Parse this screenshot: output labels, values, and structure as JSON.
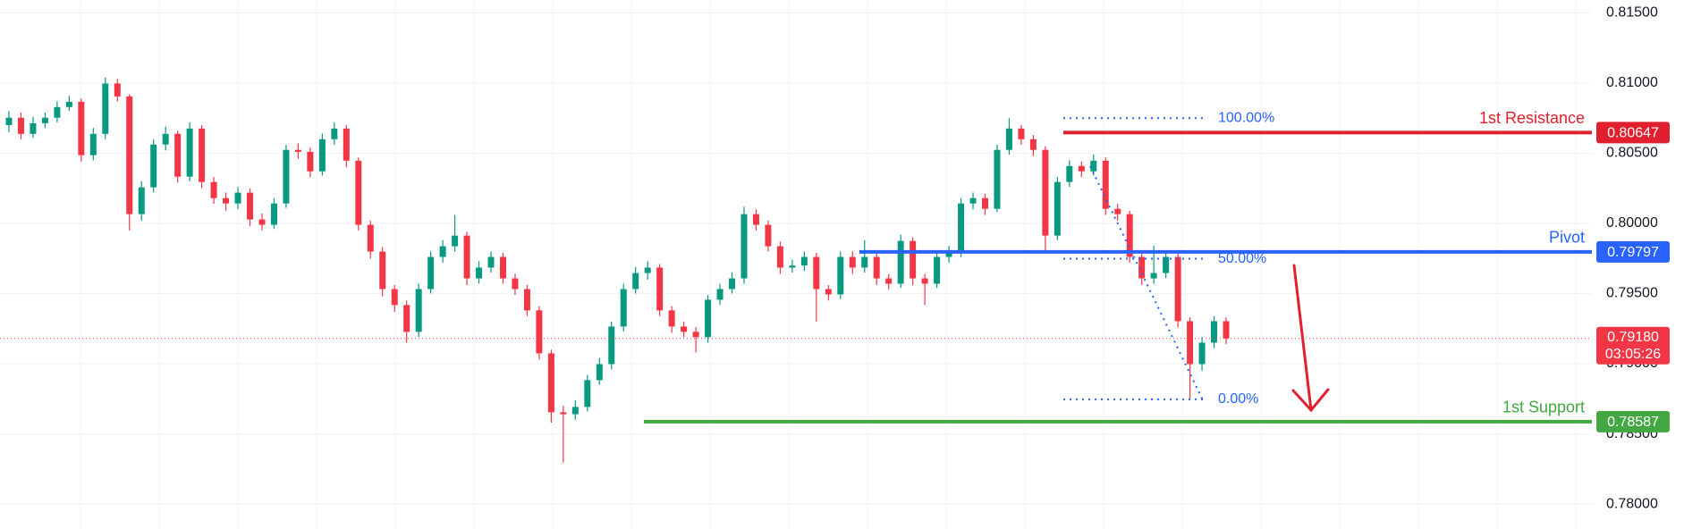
{
  "chart_data": {
    "type": "candlestick",
    "ylim": [
      0.77822,
      0.81592
    ],
    "yticks": [
      {
        "value": 0.78,
        "label": "0.78000"
      },
      {
        "value": 0.785,
        "label": "0.78500"
      },
      {
        "value": 0.79,
        "label": "0.79000"
      },
      {
        "value": 0.795,
        "label": "0.79500"
      },
      {
        "value": 0.8,
        "label": "0.80000"
      },
      {
        "value": 0.805,
        "label": "0.80500"
      },
      {
        "value": 0.81,
        "label": "0.81000"
      },
      {
        "value": 0.815,
        "label": "0.81500"
      }
    ],
    "grid": true,
    "up_color": "#089981",
    "down_color": "#f23645",
    "open": [
      0.807,
      0.80753,
      0.80638,
      0.80714,
      0.80753,
      0.80829,
      0.80867,
      0.80486,
      0.80638,
      0.80997,
      0.80905,
      0.80066,
      0.80257,
      0.80562,
      0.80638,
      0.80333,
      0.80676,
      0.80295,
      0.8018,
      0.80142,
      0.80219,
      0.80028,
      0.7999,
      0.80142,
      0.80524,
      0.8051,
      0.80371,
      0.806,
      0.80676,
      0.80447,
      0.7999,
      0.79799,
      0.79532,
      0.79418,
      0.79227,
      0.79532,
      0.79761,
      0.79837,
      0.79913,
      0.79608,
      0.79685,
      0.79761,
      0.79608,
      0.79532,
      0.7938,
      0.79074,
      0.78654,
      0.7864,
      0.78692,
      0.78883,
      0.78997,
      0.79265,
      0.79532,
      0.79646,
      0.79685,
      0.7938,
      0.79265,
      0.79227,
      0.79189,
      0.79456,
      0.79532,
      0.79608,
      0.80066,
      0.7999,
      0.79837,
      0.79685,
      0.797,
      0.79761,
      0.79532,
      0.79494,
      0.79761,
      0.79685,
      0.79761,
      0.79608,
      0.7957,
      0.79875,
      0.79608,
      0.7957,
      0.79761,
      0.79799,
      0.80142,
      0.8018,
      0.80104,
      0.80524,
      0.80676,
      0.806,
      0.80524,
      0.79913,
      0.80295,
      0.80409,
      0.80371,
      0.80447,
      0.80104,
      0.80066,
      0.79761,
      0.79608,
      0.79646,
      0.79761,
      0.79303,
      0.78997,
      0.7915,
      0.79303
    ],
    "high": [
      0.808,
      0.8079,
      0.8076,
      0.8079,
      0.8087,
      0.8091,
      0.8089,
      0.8068,
      0.8104,
      0.8103,
      0.8092,
      0.803,
      0.806,
      0.8069,
      0.8066,
      0.8072,
      0.807,
      0.8033,
      0.8022,
      0.8026,
      0.8025,
      0.8007,
      0.8018,
      0.8056,
      0.8057,
      0.8054,
      0.8064,
      0.8072,
      0.807,
      0.8047,
      0.8002,
      0.7983,
      0.7956,
      0.7945,
      0.7957,
      0.798,
      0.7988,
      0.8006,
      0.7994,
      0.7973,
      0.798,
      0.7979,
      0.7964,
      0.7956,
      0.7941,
      0.791,
      0.787,
      0.7874,
      0.7892,
      0.7904,
      0.793,
      0.7957,
      0.7969,
      0.7973,
      0.7971,
      0.7941,
      0.793,
      0.7926,
      0.7949,
      0.7957,
      0.7965,
      0.8012,
      0.801,
      0.8002,
      0.7987,
      0.7974,
      0.798,
      0.7979,
      0.7956,
      0.798,
      0.798,
      0.7988,
      0.7979,
      0.7964,
      0.7992,
      0.799,
      0.7964,
      0.798,
      0.7984,
      0.8018,
      0.8022,
      0.8021,
      0.8056,
      0.8075,
      0.807,
      0.8063,
      0.8055,
      0.8033,
      0.8045,
      0.8044,
      0.8049,
      0.8047,
      0.8014,
      0.8009,
      0.7979,
      0.7984,
      0.798,
      0.7979,
      0.7933,
      0.7919,
      0.7934,
      0.7933
    ],
    "low": [
      0.8065,
      0.806,
      0.8061,
      0.8068,
      0.8072,
      0.808,
      0.8044,
      0.8045,
      0.806,
      0.8087,
      0.7995,
      0.8002,
      0.8022,
      0.8052,
      0.8029,
      0.803,
      0.8025,
      0.8014,
      0.8009,
      0.801,
      0.7998,
      0.7995,
      0.7996,
      0.8011,
      0.8046,
      0.8033,
      0.8034,
      0.8056,
      0.804,
      0.7995,
      0.7975,
      0.7948,
      0.7937,
      0.7915,
      0.7919,
      0.795,
      0.7972,
      0.798,
      0.7956,
      0.7957,
      0.7965,
      0.7957,
      0.7949,
      0.7934,
      0.7903,
      0.7858,
      0.78296,
      0.786,
      0.7866,
      0.7885,
      0.7896,
      0.7923,
      0.795,
      0.796,
      0.7934,
      0.7922,
      0.7919,
      0.7908,
      0.7915,
      0.7942,
      0.795,
      0.7957,
      0.7995,
      0.798,
      0.7964,
      0.7965,
      0.7966,
      0.793,
      0.7945,
      0.7946,
      0.7964,
      0.7965,
      0.7956,
      0.7953,
      0.7954,
      0.7956,
      0.7942,
      0.7954,
      0.7972,
      0.7976,
      0.801,
      0.8006,
      0.8008,
      0.8049,
      0.8056,
      0.8048,
      0.798,
      0.7988,
      0.8026,
      0.8033,
      0.8034,
      0.8006,
      0.8002,
      0.7972,
      0.7956,
      0.7957,
      0.7961,
      0.7926,
      0.78746,
      0.7895,
      0.7911,
      0.7914
    ],
    "close": [
      0.80753,
      0.80638,
      0.80714,
      0.80753,
      0.80829,
      0.80867,
      0.80486,
      0.80638,
      0.80997,
      0.80905,
      0.80066,
      0.80257,
      0.80562,
      0.80638,
      0.80333,
      0.80676,
      0.80295,
      0.8018,
      0.80142,
      0.80219,
      0.80028,
      0.7999,
      0.80142,
      0.80524,
      0.8051,
      0.80371,
      0.806,
      0.80676,
      0.80447,
      0.7999,
      0.79799,
      0.79532,
      0.79418,
      0.79227,
      0.79532,
      0.79761,
      0.79837,
      0.79913,
      0.79608,
      0.79685,
      0.79761,
      0.79608,
      0.79532,
      0.7938,
      0.79074,
      0.78654,
      0.7864,
      0.78692,
      0.78883,
      0.78997,
      0.79265,
      0.79532,
      0.79646,
      0.79685,
      0.7938,
      0.79265,
      0.79227,
      0.79189,
      0.79456,
      0.79532,
      0.79608,
      0.80066,
      0.7999,
      0.79837,
      0.79685,
      0.797,
      0.79761,
      0.79532,
      0.79494,
      0.79761,
      0.79685,
      0.79761,
      0.79608,
      0.7957,
      0.79875,
      0.79608,
      0.7957,
      0.79761,
      0.79799,
      0.80142,
      0.8018,
      0.80104,
      0.80524,
      0.80676,
      0.806,
      0.80524,
      0.79913,
      0.80295,
      0.80409,
      0.80371,
      0.80447,
      0.80104,
      0.80066,
      0.79761,
      0.79608,
      0.79646,
      0.79761,
      0.79303,
      0.78997,
      0.7915,
      0.79303,
      0.7918
    ],
    "current_price": {
      "value": 0.7918,
      "label": "0.79180"
    },
    "countdown": "03:05:26",
    "current_color": "#f23645",
    "levels": [
      {
        "name": "1st Resistance",
        "value": 0.80647,
        "color": "#e0202e"
      },
      {
        "name": "Pivot",
        "value": 0.79797,
        "color": "#2962ff"
      },
      {
        "name": "1st Support",
        "value": 0.78587,
        "color": "#43a843"
      }
    ],
    "fibonacci": {
      "high": 0.8075,
      "low": 0.78746,
      "color": "#2962ff",
      "levels": [
        {
          "value": 100,
          "label": "100.00%"
        },
        {
          "value": 50,
          "label": "50.00%"
        },
        {
          "value": 0,
          "label": "0.00%"
        }
      ]
    }
  }
}
